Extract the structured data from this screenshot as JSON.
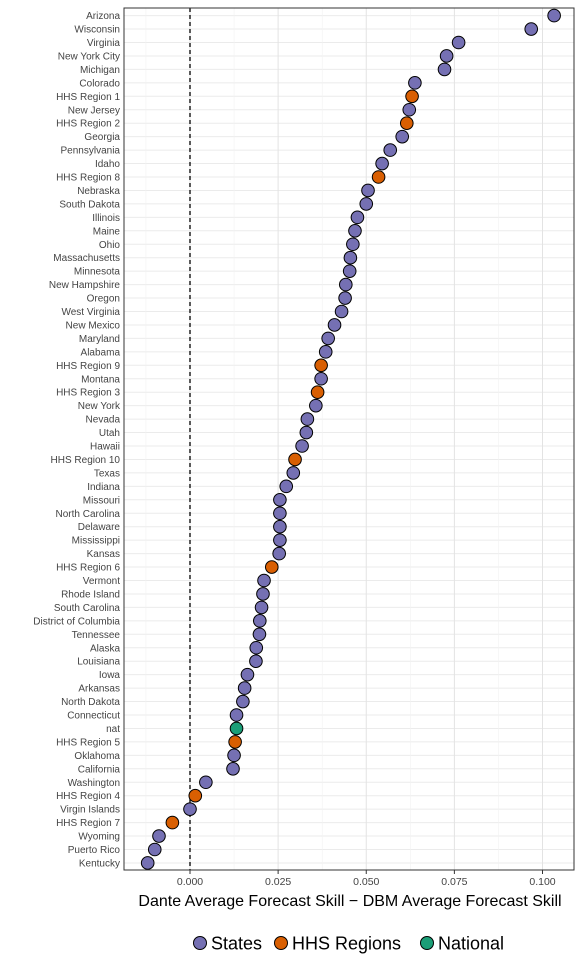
{
  "chart_data": {
    "type": "scatter",
    "title": "",
    "xlabel": "Dante Average Forecast Skill − DBM Average Forecast Skill",
    "ylabel": "",
    "xlim": [
      -0.012,
      0.109
    ],
    "x_ticks": [
      0.0,
      0.025,
      0.05,
      0.075,
      0.1
    ],
    "x_tick_labels": [
      "0.000",
      "0.025",
      "0.050",
      "0.075",
      "0.100"
    ],
    "reference_line": {
      "x": 0.0,
      "style": "dashed"
    },
    "grid": true,
    "legend_position": "bottom",
    "groups": [
      {
        "name": "States",
        "color": "#7570b3"
      },
      {
        "name": "HHS Regions",
        "color": "#d95f02"
      },
      {
        "name": "National",
        "color": "#1b9e77"
      }
    ],
    "points": [
      {
        "label": "Arizona",
        "x": 0.1033,
        "group": "States"
      },
      {
        "label": "Wisconsin",
        "x": 0.0968,
        "group": "States"
      },
      {
        "label": "Virginia",
        "x": 0.0762,
        "group": "States"
      },
      {
        "label": "New York City",
        "x": 0.0728,
        "group": "States"
      },
      {
        "label": "Michigan",
        "x": 0.0722,
        "group": "States"
      },
      {
        "label": "Colorado",
        "x": 0.0638,
        "group": "States"
      },
      {
        "label": "HHS Region 1",
        "x": 0.063,
        "group": "HHS Regions"
      },
      {
        "label": "New Jersey",
        "x": 0.0622,
        "group": "States"
      },
      {
        "label": "HHS Region 2",
        "x": 0.0615,
        "group": "HHS Regions"
      },
      {
        "label": "Georgia",
        "x": 0.0602,
        "group": "States"
      },
      {
        "label": "Pennsylvania",
        "x": 0.0568,
        "group": "States"
      },
      {
        "label": "Idaho",
        "x": 0.0545,
        "group": "States"
      },
      {
        "label": "HHS Region 8",
        "x": 0.0535,
        "group": "HHS Regions"
      },
      {
        "label": "Nebraska",
        "x": 0.0505,
        "group": "States"
      },
      {
        "label": "South Dakota",
        "x": 0.05,
        "group": "States"
      },
      {
        "label": "Illinois",
        "x": 0.0475,
        "group": "States"
      },
      {
        "label": "Maine",
        "x": 0.0468,
        "group": "States"
      },
      {
        "label": "Ohio",
        "x": 0.0462,
        "group": "States"
      },
      {
        "label": "Massachusetts",
        "x": 0.0455,
        "group": "States"
      },
      {
        "label": "Minnesota",
        "x": 0.0453,
        "group": "States"
      },
      {
        "label": "New Hampshire",
        "x": 0.0442,
        "group": "States"
      },
      {
        "label": "Oregon",
        "x": 0.044,
        "group": "States"
      },
      {
        "label": "West Virginia",
        "x": 0.043,
        "group": "States"
      },
      {
        "label": "New Mexico",
        "x": 0.041,
        "group": "States"
      },
      {
        "label": "Maryland",
        "x": 0.0392,
        "group": "States"
      },
      {
        "label": "Alabama",
        "x": 0.0385,
        "group": "States"
      },
      {
        "label": "HHS Region 9",
        "x": 0.0372,
        "group": "HHS Regions"
      },
      {
        "label": "Montana",
        "x": 0.0372,
        "group": "States"
      },
      {
        "label": "HHS Region 3",
        "x": 0.0362,
        "group": "HHS Regions"
      },
      {
        "label": "New York",
        "x": 0.0357,
        "group": "States"
      },
      {
        "label": "Nevada",
        "x": 0.0333,
        "group": "States"
      },
      {
        "label": "Utah",
        "x": 0.033,
        "group": "States"
      },
      {
        "label": "Hawaii",
        "x": 0.0318,
        "group": "States"
      },
      {
        "label": "HHS Region 10",
        "x": 0.0298,
        "group": "HHS Regions"
      },
      {
        "label": "Texas",
        "x": 0.0293,
        "group": "States"
      },
      {
        "label": "Indiana",
        "x": 0.0273,
        "group": "States"
      },
      {
        "label": "Missouri",
        "x": 0.0255,
        "group": "States"
      },
      {
        "label": "North Carolina",
        "x": 0.0255,
        "group": "States"
      },
      {
        "label": "Delaware",
        "x": 0.0255,
        "group": "States"
      },
      {
        "label": "Mississippi",
        "x": 0.0255,
        "group": "States"
      },
      {
        "label": "Kansas",
        "x": 0.0253,
        "group": "States"
      },
      {
        "label": "HHS Region 6",
        "x": 0.0232,
        "group": "HHS Regions"
      },
      {
        "label": "Vermont",
        "x": 0.021,
        "group": "States"
      },
      {
        "label": "Rhode Island",
        "x": 0.0207,
        "group": "States"
      },
      {
        "label": "South Carolina",
        "x": 0.0203,
        "group": "States"
      },
      {
        "label": "District of Columbia",
        "x": 0.0198,
        "group": "States"
      },
      {
        "label": "Tennessee",
        "x": 0.0197,
        "group": "States"
      },
      {
        "label": "Alaska",
        "x": 0.0188,
        "group": "States"
      },
      {
        "label": "Louisiana",
        "x": 0.0187,
        "group": "States"
      },
      {
        "label": "Iowa",
        "x": 0.0163,
        "group": "States"
      },
      {
        "label": "Arkansas",
        "x": 0.0155,
        "group": "States"
      },
      {
        "label": "North Dakota",
        "x": 0.015,
        "group": "States"
      },
      {
        "label": "Connecticut",
        "x": 0.0132,
        "group": "States"
      },
      {
        "label": "nat",
        "x": 0.0132,
        "group": "National"
      },
      {
        "label": "HHS Region 5",
        "x": 0.0128,
        "group": "HHS Regions"
      },
      {
        "label": "Oklahoma",
        "x": 0.0125,
        "group": "States"
      },
      {
        "label": "California",
        "x": 0.0122,
        "group": "States"
      },
      {
        "label": "Washington",
        "x": 0.0045,
        "group": "States"
      },
      {
        "label": "HHS Region 4",
        "x": 0.0015,
        "group": "HHS Regions"
      },
      {
        "label": "Virgin Islands",
        "x": 0.0,
        "group": "States"
      },
      {
        "label": "HHS Region 7",
        "x": -0.005,
        "group": "HHS Regions"
      },
      {
        "label": "Wyoming",
        "x": -0.0088,
        "group": "States"
      },
      {
        "label": "Puerto Rico",
        "x": -0.01,
        "group": "States"
      },
      {
        "label": "Kentucky",
        "x": -0.012,
        "group": "States"
      }
    ]
  }
}
